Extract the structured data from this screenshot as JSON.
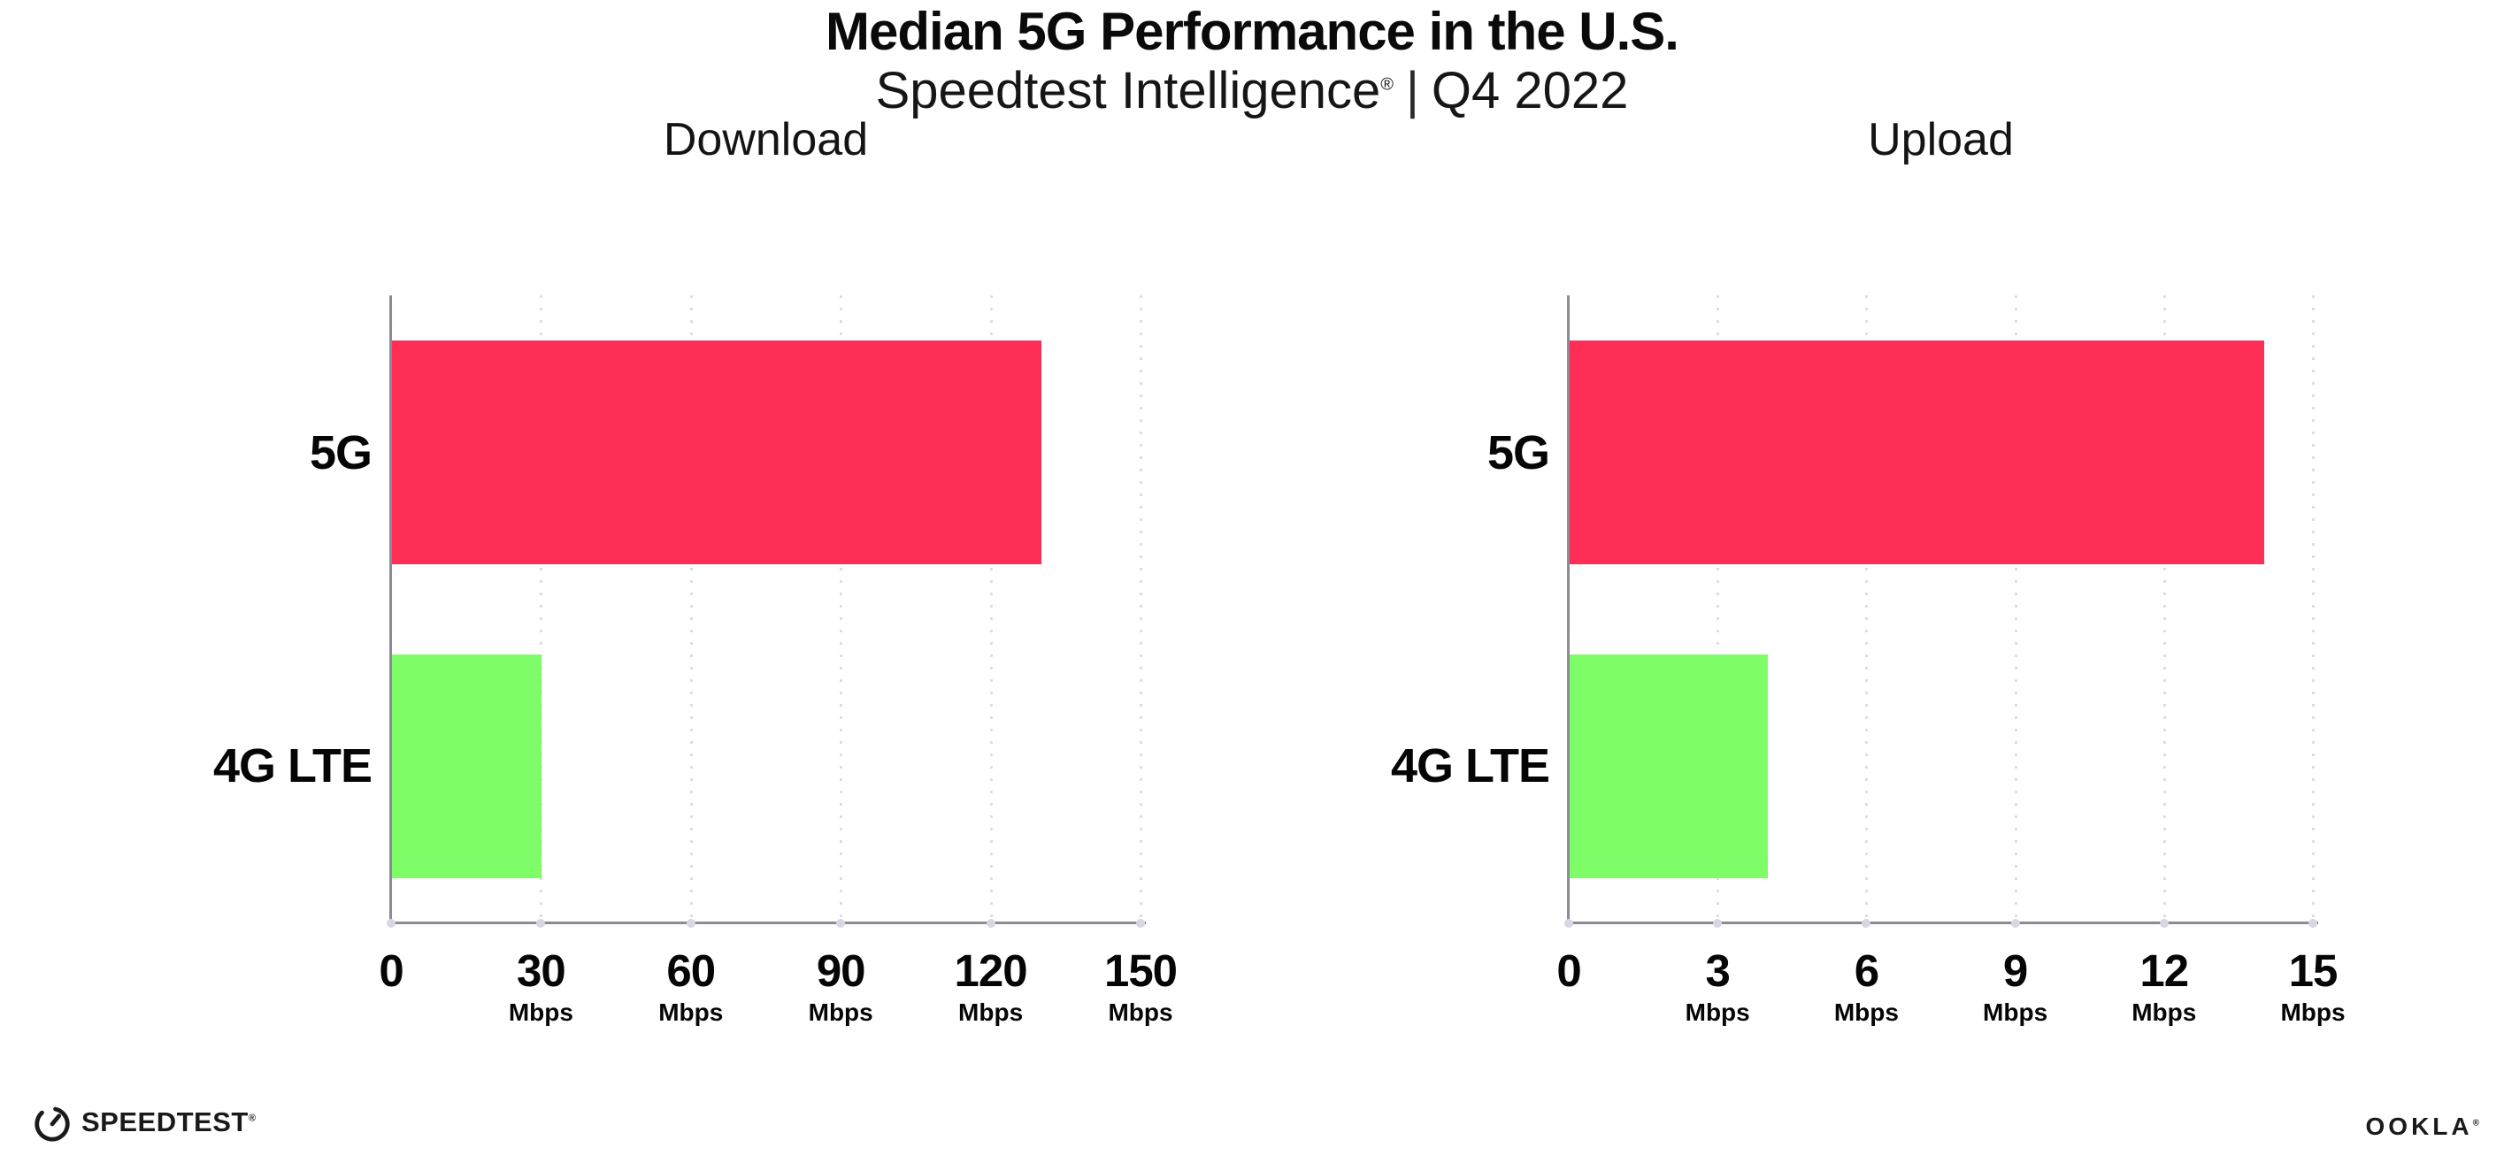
{
  "header": {
    "title": "Median 5G Performance in the U.S.",
    "subtitle_brand": "Speedtest Intelligence",
    "subtitle_reg": "®",
    "subtitle_separator": "|",
    "subtitle_period": "Q4 2022"
  },
  "chart_data": [
    {
      "type": "bar",
      "orientation": "horizontal",
      "title": "Download",
      "categories": [
        "5G",
        "4G LTE"
      ],
      "values": [
        130,
        30
      ],
      "value_unit": "Mbps",
      "xlim": [
        0,
        150
      ],
      "xticks": [
        0,
        30,
        60,
        90,
        120,
        150
      ],
      "tick_unit_label": "Mbps",
      "bar_colors": [
        "#FF2E56",
        "#7EFD68"
      ],
      "grid": "dotted-vertical",
      "legend": "none"
    },
    {
      "type": "bar",
      "orientation": "horizontal",
      "title": "Upload",
      "categories": [
        "5G",
        "4G LTE"
      ],
      "values": [
        14,
        4
      ],
      "value_unit": "Mbps",
      "xlim": [
        0,
        15
      ],
      "xticks": [
        0,
        3,
        6,
        9,
        12,
        15
      ],
      "tick_unit_label": "Mbps",
      "bar_colors": [
        "#FF2E56",
        "#7EFD68"
      ],
      "grid": "dotted-vertical",
      "legend": "none"
    }
  ],
  "footer": {
    "speedtest_logo_text": "SPEEDTEST",
    "speedtest_reg": "®",
    "ookla_logo_text": "OOKLA",
    "ookla_reg": "®"
  },
  "colors": {
    "bar_5g": "#FF2E56",
    "bar_4g_lte": "#7EFD68",
    "axis": "#8A8B94",
    "gridline": "#DCDDE8",
    "tick_dot": "#D6D7E2",
    "text": "#0D0D0D",
    "background": "#FFFFFF"
  }
}
